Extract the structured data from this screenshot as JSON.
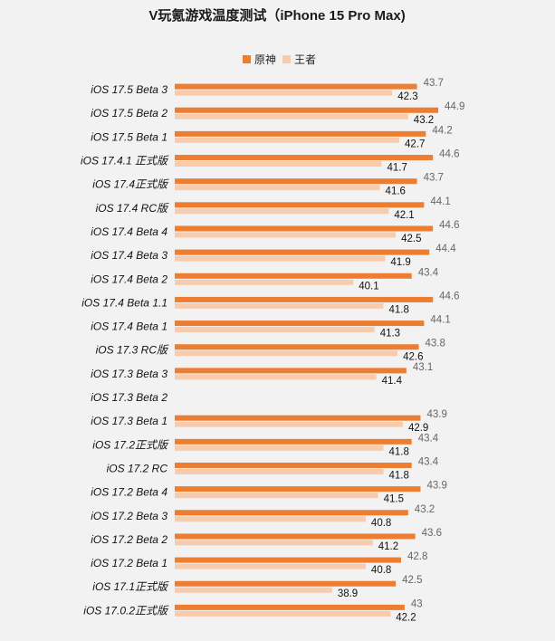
{
  "chart_data": {
    "type": "bar",
    "orientation": "horizontal",
    "title": "V玩氪游戏温度测试（iPhone 15 Pro Max)",
    "legend_position": "top-center",
    "grid": false,
    "colors": {
      "原神": "#ed7d31",
      "王者": "#f8cbad"
    },
    "categories": [
      "iOS 17.5 Beta 3",
      "iOS 17.5 Beta 2",
      "iOS 17.5 Beta 1",
      "iOS 17.4.1 正式版",
      "iOS 17.4正式版",
      "iOS 17.4 RC版",
      "iOS 17.4 Beta 4",
      "iOS 17.4 Beta 3",
      "iOS 17.4 Beta 2",
      "iOS 17.4 Beta 1.1",
      "iOS 17.4 Beta 1",
      "iOS 17.3 RC版",
      "iOS 17.3 Beta 3",
      "iOS 17.3 Beta 2",
      "iOS 17.3 Beta 1",
      "iOS 17.2正式版",
      "iOS 17.2 RC",
      "iOS 17.2 Beta 4",
      "iOS 17.2 Beta 3",
      "iOS 17.2 Beta 2",
      "iOS 17.2 Beta 1",
      "iOS 17.1正式版",
      "iOS 17.0.2正式版"
    ],
    "series": [
      {
        "name": "原神",
        "values": [
          43.7,
          44.9,
          44.2,
          44.6,
          43.7,
          44.1,
          44.6,
          44.4,
          43.4,
          44.6,
          44.1,
          43.8,
          43.1,
          null,
          43.9,
          43.4,
          43.4,
          43.9,
          43.2,
          43.6,
          42.8,
          42.5,
          43
        ]
      },
      {
        "name": "王者",
        "values": [
          42.3,
          43.2,
          42.7,
          41.7,
          41.6,
          42.1,
          42.5,
          41.9,
          40.1,
          41.8,
          41.3,
          42.6,
          41.4,
          null,
          42.9,
          41.8,
          41.8,
          41.5,
          40.8,
          41.2,
          40.8,
          38.9,
          42.2
        ]
      }
    ]
  }
}
